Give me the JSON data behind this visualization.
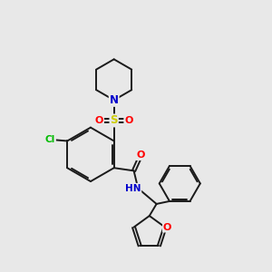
{
  "bg_color": "#e8e8e8",
  "bond_color": "#1a1a1a",
  "atom_colors": {
    "N": "#0000cc",
    "O": "#ff0000",
    "S": "#cccc00",
    "Cl": "#00bb00",
    "C": "#1a1a1a"
  },
  "lw": 1.4
}
